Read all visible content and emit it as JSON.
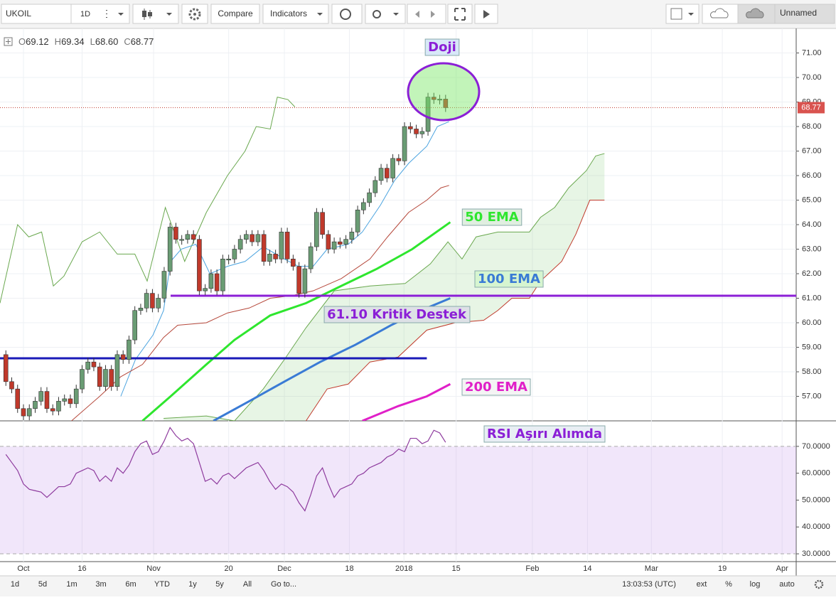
{
  "toolbar": {
    "symbol": "UKOIL",
    "interval": "1D",
    "compare": "Compare",
    "indicators": "Indicators",
    "layout": "Unnamed"
  },
  "legend": {
    "o_label": "O",
    "open": "69.12",
    "h_label": "H",
    "high": "69.34",
    "l_label": "L",
    "low": "68.60",
    "c_label": "C",
    "close": "68.77"
  },
  "bottom_bar": {
    "ranges": [
      "1d",
      "5d",
      "1m",
      "3m",
      "6m",
      "YTD",
      "1y",
      "5y",
      "All"
    ],
    "goto": "Go to...",
    "clock": "13:03:53 (UTC)",
    "options": [
      "ext",
      "%",
      "log",
      "auto"
    ]
  },
  "chart_data": {
    "type": "candlestick",
    "up_color": "#6a9c74",
    "down_color": "#c0392b",
    "open": [
      58.7,
      57.6,
      57.3,
      56.5,
      56.2,
      56.5,
      56.8,
      57.2,
      56.5,
      56.4,
      56.8,
      56.9,
      56.7,
      57.3,
      58.1,
      58.4,
      58.2,
      57.4,
      58.1,
      57.4,
      58.7,
      58.5,
      59.3,
      60.5,
      60.6,
      61.2,
      60.6,
      61.0,
      62.1,
      63.9,
      63.4,
      63.4,
      63.6,
      63.4,
      61.3,
      61.4,
      62.0,
      61.3,
      62.6,
      62.6,
      63.0,
      63.4,
      63.6,
      63.3,
      63.6,
      62.5,
      62.8,
      62.6,
      63.7,
      62.6,
      62.3,
      61.2,
      62.2,
      63.1,
      64.5,
      63.6,
      63.0,
      63.3,
      63.2,
      63.4,
      63.7,
      64.6,
      64.9,
      65.3,
      65.8,
      66.3,
      65.9,
      66.7,
      66.6,
      68.0,
      67.9,
      67.7,
      67.8,
      69.2,
      69.1,
      69.12
    ],
    "close": [
      57.6,
      57.3,
      56.5,
      56.2,
      56.5,
      56.8,
      57.2,
      56.5,
      56.4,
      56.8,
      56.9,
      56.7,
      57.3,
      58.1,
      58.4,
      58.2,
      57.4,
      58.1,
      57.4,
      58.7,
      58.5,
      59.3,
      60.5,
      60.6,
      61.2,
      60.6,
      61.0,
      62.1,
      63.9,
      63.4,
      63.4,
      63.6,
      63.4,
      61.3,
      61.4,
      62.0,
      61.3,
      62.6,
      62.6,
      63.0,
      63.4,
      63.6,
      63.3,
      63.6,
      62.5,
      62.8,
      62.6,
      63.7,
      62.6,
      62.3,
      61.2,
      62.2,
      63.1,
      64.5,
      63.6,
      63.0,
      63.3,
      63.2,
      63.4,
      63.7,
      64.6,
      64.9,
      65.3,
      65.8,
      66.3,
      65.9,
      66.7,
      66.6,
      68.0,
      67.9,
      67.7,
      67.8,
      69.2,
      69.1,
      69.12,
      68.77
    ],
    "lines": [
      {
        "color": "#6aa84f",
        "width": 1,
        "x": [
          -1,
          2,
          3.9,
          6.1,
          8.1,
          9.9,
          13,
          16,
          19,
          22,
          24.1,
          27.2,
          30.5,
          34.2,
          37.8,
          40.8,
          42.7,
          45.1,
          46.3,
          48.1,
          49.3
        ],
        "values": [
          60.8,
          64,
          63.5,
          63.7,
          61.5,
          61.9,
          63.3,
          63.7,
          62.8,
          62.8,
          61.7,
          64.7,
          62.5,
          64.5,
          66,
          67,
          68,
          67.9,
          69.2,
          69.1,
          68.8
        ]
      },
      {
        "color": "#4aa3df",
        "width": 1,
        "x": [
          19.6,
          22.1,
          25.1,
          26.9,
          28.1,
          29.9,
          32.4,
          34.8,
          37.8,
          40.8,
          43.9,
          47.5,
          49.9,
          52.4,
          54.8,
          58.4,
          60.8,
          63.9,
          66.3,
          68.7,
          71.8,
          73.6,
          75.6
        ],
        "values": [
          57,
          58.5,
          59.5,
          60.5,
          62.5,
          63,
          63.2,
          62,
          62.3,
          62.5,
          63.1,
          62.6,
          62.3,
          62.3,
          63,
          63.2,
          63.7,
          64.8,
          65.8,
          66.5,
          67.2,
          68,
          68.2
        ]
      },
      {
        "color": "#b5473a",
        "width": 1,
        "x": [
          11.2,
          16,
          19.6,
          23.3,
          26.9,
          29.3,
          34.2,
          37.8,
          41.5,
          45.1,
          48.7,
          52.4,
          57.2,
          62.1,
          65.1,
          68.7,
          71.8,
          74.2,
          75.6
        ],
        "values": [
          56,
          57,
          57.8,
          58.3,
          59.4,
          59.9,
          60,
          60.4,
          60.6,
          61,
          61.1,
          61.3,
          61.8,
          62.6,
          63.5,
          64.5,
          65,
          65.5,
          65.6
        ]
      },
      {
        "color": "#6aa84f",
        "width": 1,
        "x": [
          26.9,
          34.2,
          39,
          43.9,
          47.5,
          51.2,
          56,
          62.1,
          68.1,
          72.4,
          75.4,
          77.8,
          80.2,
          83.9,
          89.3,
          91.2,
          93.6,
          96,
          99,
          100.6,
          102.1
        ],
        "values": [
          56.1,
          56.2,
          56,
          57.3,
          58.5,
          59.8,
          61.3,
          61.5,
          61.6,
          62.4,
          63.3,
          62.6,
          63.5,
          63.7,
          63.7,
          64.3,
          64.7,
          65.5,
          66.2,
          66.8,
          66.9
        ]
      },
      {
        "color": "#c0392b",
        "width": 1,
        "x": [
          51.2,
          54.8,
          58.4,
          62.1,
          66.9,
          71.8,
          76.6,
          81.5,
          83.9,
          86.3,
          89.3,
          91.2,
          94.8,
          97.2,
          99.6,
          102.1
        ],
        "values": [
          56,
          57.3,
          57.5,
          58.4,
          58.6,
          59.7,
          60,
          60.1,
          60.5,
          61,
          61,
          61.7,
          62.5,
          63.6,
          65,
          65
        ]
      },
      {
        "color": "#2ee62e",
        "width": 3,
        "x": [
          23.3,
          28.1,
          34.2,
          39,
          45.1,
          51.2,
          57.2,
          63.3,
          69.3,
          75.8
        ],
        "values": [
          56,
          57,
          58.3,
          59.3,
          60.3,
          60.8,
          61.5,
          62.2,
          63,
          64.1
        ]
      },
      {
        "color": "#3a7bd5",
        "width": 3,
        "x": [
          35.4,
          41.5,
          47.5,
          53.6,
          59.6,
          65.7,
          71.8,
          75.8
        ],
        "values": [
          56,
          56.8,
          57.6,
          58.4,
          59.1,
          59.9,
          60.6,
          61
        ]
      },
      {
        "color": "#e020c8",
        "width": 3,
        "x": [
          60.8,
          66.9,
          71.8,
          75.8
        ],
        "values": [
          56,
          56.6,
          57,
          57.5
        ]
      }
    ],
    "levels": [
      {
        "value": 61.1,
        "from": 28.1,
        "color": "#8b1fd6"
      },
      {
        "value": 58.55,
        "from": -1,
        "to": 71.8,
        "color": "#1a1ab8"
      }
    ],
    "xlim": [
      -1,
      134.8
    ],
    "ylim": [
      56,
      72
    ],
    "yticks": [
      {
        "value": 57,
        "label": "57.00"
      },
      {
        "value": 58,
        "label": "58.00"
      },
      {
        "value": 59,
        "label": "59.00"
      },
      {
        "value": 60,
        "label": "60.00"
      },
      {
        "value": 61,
        "label": "61.00"
      },
      {
        "value": 62,
        "label": "62.00"
      },
      {
        "value": 63,
        "label": "63.00"
      },
      {
        "value": 64,
        "label": "64.00"
      },
      {
        "value": 65,
        "label": "65.00"
      },
      {
        "value": 66,
        "label": "66.00"
      },
      {
        "value": 67,
        "label": "67.00"
      },
      {
        "value": 68,
        "label": "68.00"
      },
      {
        "value": 69,
        "label": "69.00"
      },
      {
        "value": 70,
        "label": "70.00"
      },
      {
        "value": 71,
        "label": "71.00"
      }
    ],
    "xticks": [
      {
        "value": 3,
        "label": "Oct"
      },
      {
        "value": 13,
        "label": "16"
      },
      {
        "value": 25.2,
        "label": "Nov"
      },
      {
        "value": 38,
        "label": "20"
      },
      {
        "value": 47.5,
        "label": "Dec"
      },
      {
        "value": 58.6,
        "label": "18"
      },
      {
        "value": 67.9,
        "label": "2018"
      },
      {
        "value": 76.8,
        "label": "15"
      },
      {
        "value": 89.8,
        "label": "Feb"
      },
      {
        "value": 99.2,
        "label": "14"
      },
      {
        "value": 110.1,
        "label": "Mar"
      },
      {
        "value": 122.2,
        "label": "19"
      },
      {
        "value": 132.4,
        "label": "Apr"
      }
    ],
    "annotations": [
      "Doji",
      "50 EMA",
      "100 EMA",
      "61.10 Kritik Destek",
      "200 EMA",
      "RSI Aşırı Alımda"
    ],
    "rsi": {
      "color": "#8e3b9e",
      "values": [
        67,
        64,
        61,
        56,
        54,
        53.5,
        53,
        51,
        53,
        55,
        55,
        56,
        60,
        61,
        62,
        61,
        57,
        59,
        57,
        62,
        60,
        63,
        68,
        71,
        72,
        67,
        68,
        72,
        77,
        74,
        72,
        73,
        71,
        64,
        57,
        58,
        56,
        59,
        60,
        58,
        60,
        62,
        63,
        64,
        61,
        57,
        54,
        56,
        55,
        53,
        49,
        46,
        52,
        59,
        62,
        56,
        51,
        54,
        55,
        56,
        59,
        60,
        62,
        63,
        64,
        66,
        67,
        69,
        68,
        73,
        73,
        71,
        72,
        76,
        75,
        71.5
      ],
      "ylim": [
        27.1,
        79.5
      ],
      "band": [
        30,
        70
      ],
      "yticks": [
        {
          "value": 30,
          "label": "30.0000"
        },
        {
          "value": 40,
          "label": "40.0000"
        },
        {
          "value": 50,
          "label": "50.0000"
        },
        {
          "value": 60,
          "label": "60.0000"
        },
        {
          "value": 70,
          "label": "70.0000"
        }
      ]
    }
  }
}
